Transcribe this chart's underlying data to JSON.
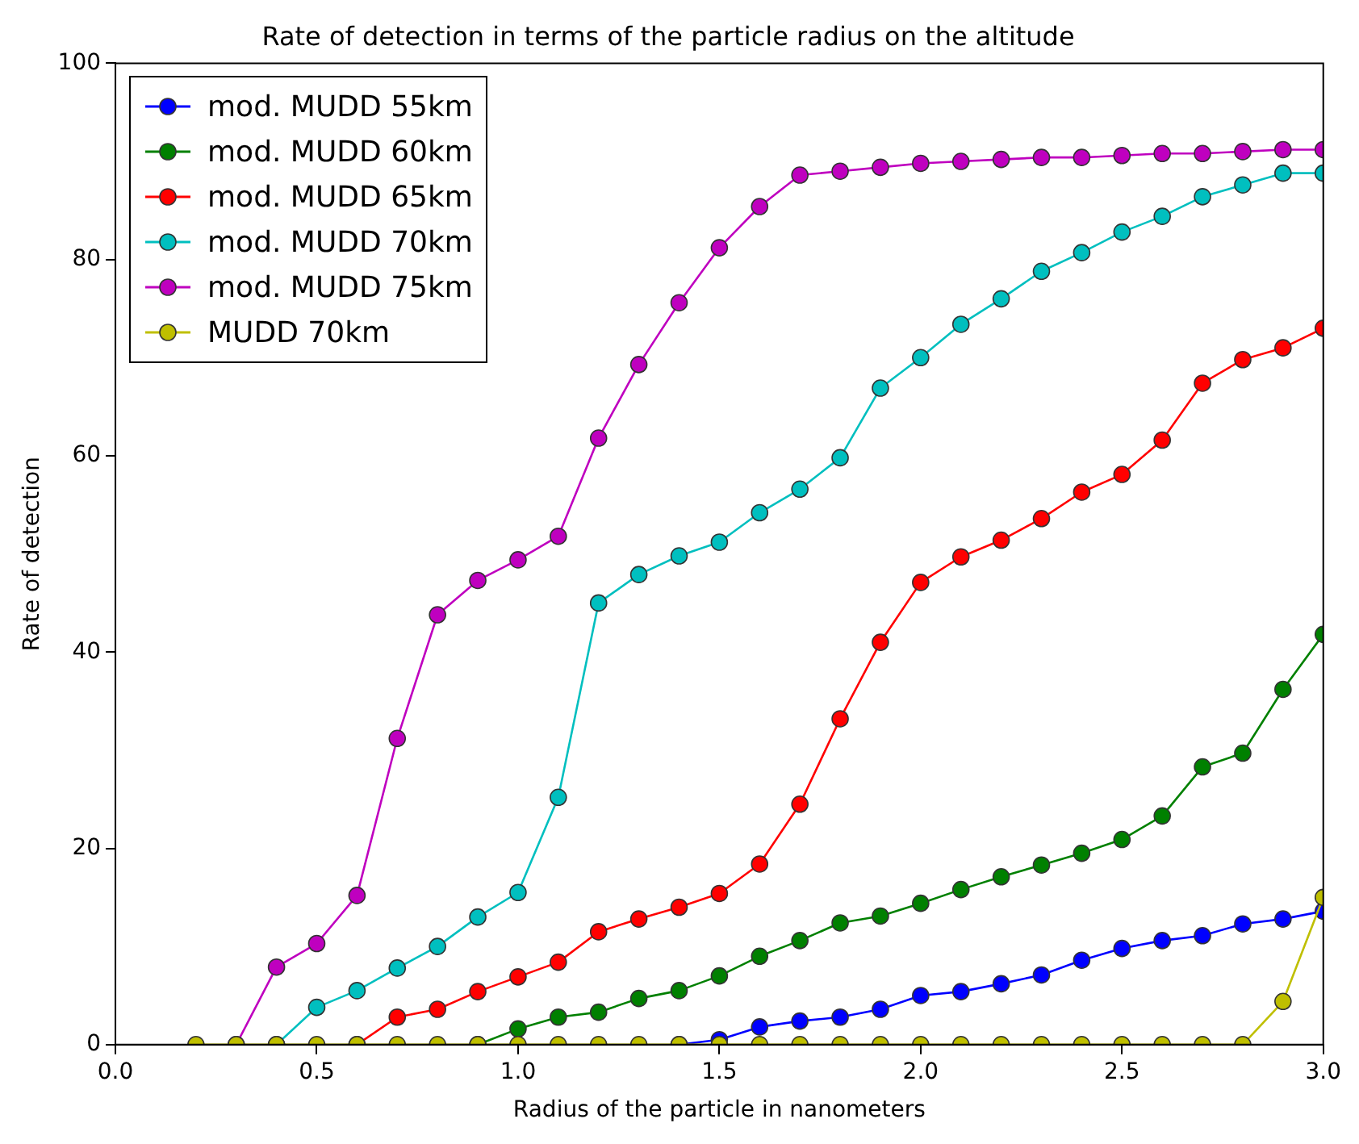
{
  "chart_data": {
    "type": "line",
    "title": "Rate of detection in terms of the particle radius on the altitude",
    "xlabel": "Radius of the particle in nanometers",
    "ylabel": "Rate of detection",
    "x": [
      0.2,
      0.3,
      0.4,
      0.5,
      0.6,
      0.7,
      0.8,
      0.9,
      1.0,
      1.1,
      1.2,
      1.3,
      1.4,
      1.5,
      1.6,
      1.7,
      1.8,
      1.9,
      2.0,
      2.1,
      2.2,
      2.3,
      2.4,
      2.5,
      2.6,
      2.7,
      2.8,
      2.9,
      3.0
    ],
    "series": [
      {
        "name": "mod. MUDD 55km",
        "color": "#0000ff",
        "values": [
          null,
          null,
          null,
          null,
          null,
          null,
          null,
          null,
          null,
          null,
          null,
          null,
          0,
          0.5,
          1.8,
          2.4,
          2.8,
          3.6,
          5.0,
          5.4,
          6.2,
          7.1,
          8.6,
          9.8,
          10.6,
          11.1,
          12.3,
          12.8,
          13.6
        ]
      },
      {
        "name": "mod. MUDD 60km",
        "color": "#008000",
        "values": [
          null,
          null,
          null,
          null,
          null,
          null,
          null,
          0,
          1.6,
          2.8,
          3.3,
          4.7,
          5.5,
          7.0,
          9.0,
          10.6,
          12.4,
          13.1,
          14.4,
          15.8,
          17.1,
          18.3,
          19.5,
          20.9,
          23.3,
          28.3,
          29.7,
          36.2,
          41.8
        ]
      },
      {
        "name": "mod. MUDD 65km",
        "color": "#ff0000",
        "values": [
          null,
          null,
          null,
          null,
          0,
          2.8,
          3.6,
          5.4,
          6.9,
          8.4,
          11.5,
          12.8,
          14.0,
          15.4,
          18.4,
          24.5,
          33.2,
          41.0,
          47.1,
          49.7,
          51.4,
          53.6,
          56.3,
          58.1,
          61.6,
          67.4,
          69.8,
          71.0,
          73.0
        ]
      },
      {
        "name": "mod. MUDD 70km",
        "color": "#00bfbf",
        "values": [
          null,
          null,
          0,
          3.8,
          5.5,
          7.8,
          10.0,
          13.0,
          15.5,
          25.2,
          45.0,
          47.9,
          49.8,
          51.2,
          54.2,
          56.6,
          59.8,
          66.9,
          70.0,
          73.4,
          76.0,
          78.8,
          80.7,
          82.8,
          84.4,
          86.4,
          87.6,
          88.8,
          88.8
        ]
      },
      {
        "name": "mod. MUDD 75km",
        "color": "#bf00bf",
        "values": [
          null,
          0,
          7.9,
          10.3,
          15.2,
          31.2,
          43.8,
          47.3,
          49.4,
          51.8,
          61.8,
          69.3,
          75.6,
          81.2,
          85.4,
          88.6,
          89.0,
          89.4,
          89.8,
          90.0,
          90.2,
          90.4,
          90.4,
          90.6,
          90.8,
          90.8,
          91.0,
          91.2,
          91.2
        ]
      },
      {
        "name": "MUDD 70km",
        "color": "#bfbf00",
        "values": [
          0,
          0,
          0,
          0,
          0,
          0,
          0,
          0,
          0,
          0,
          0,
          0,
          0,
          0,
          0,
          0,
          0,
          0,
          0,
          0,
          0,
          0,
          0,
          0,
          0,
          0,
          0,
          4.4,
          15.0
        ]
      }
    ],
    "xlim": [
      0,
      3
    ],
    "xticks": [
      {
        "value": 0,
        "label": "0.0"
      },
      {
        "value": 0.5,
        "label": "0.5"
      },
      {
        "value": 1,
        "label": "1.0"
      },
      {
        "value": 1.5,
        "label": "1.5"
      },
      {
        "value": 2,
        "label": "2.0"
      },
      {
        "value": 2.5,
        "label": "2.5"
      },
      {
        "value": 3,
        "label": "3.0"
      }
    ],
    "ylim": [
      0,
      100
    ],
    "yticks": [
      0,
      20,
      40,
      60,
      80,
      100
    ],
    "grid": false,
    "legend": "top left",
    "marker": "circle",
    "line_style": "solid"
  }
}
